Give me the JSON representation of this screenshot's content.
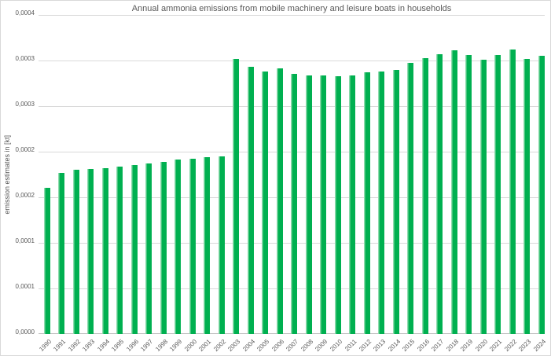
{
  "window": {
    "background": "#FFFFFF",
    "border_color": "#D9D9D9"
  },
  "chart_data": {
    "type": "bar",
    "title": "Annual ammonia emissions from mobile machinery and leisure boats in households",
    "xlabel": "",
    "ylabel": "emission estimates in [kt]",
    "categories": [
      "1990",
      "1991",
      "1992",
      "1993",
      "1994",
      "1995",
      "1996",
      "1997",
      "1998",
      "1999",
      "2000",
      "2001",
      "2002",
      "2003",
      "2004",
      "2005",
      "2006",
      "2007",
      "2008",
      "2009",
      "2010",
      "2011",
      "2012",
      "2013",
      "2014",
      "2015",
      "2016",
      "2017",
      "2018",
      "2019",
      "2020",
      "2021",
      "2022",
      "2023",
      "2024"
    ],
    "values": [
      0.00016,
      0.000177,
      0.00018,
      0.000181,
      0.000182,
      0.000184,
      0.000185,
      0.000187,
      0.000189,
      0.000191,
      0.000192,
      0.000194,
      0.000195,
      0.000302,
      0.000293,
      0.000288,
      0.000291,
      0.000285,
      0.000284,
      0.000284,
      0.000283,
      0.000284,
      0.000287,
      0.000288,
      0.00029,
      0.000297,
      0.000303,
      0.000307,
      0.000311,
      0.000306,
      0.000301,
      0.000306,
      0.000312,
      0.000302,
      0.000305
    ],
    "ylim": [
      0,
      0.00035
    ],
    "ytick_interval": 5e-05,
    "ytick_labels_top_to_bottom": [
      "0,0004",
      "0,0003",
      "0,0003",
      "0,0002",
      "0,0002",
      "0,0001",
      "0,0001",
      "0,0000"
    ],
    "grid": true,
    "legend": "none",
    "bar_color": "#00B050",
    "bar_edge_color": "#8FDCAE",
    "gridline_color": "#D9D9D9",
    "axis_line_color": "#BFBFBF",
    "text_color": "#595959"
  }
}
